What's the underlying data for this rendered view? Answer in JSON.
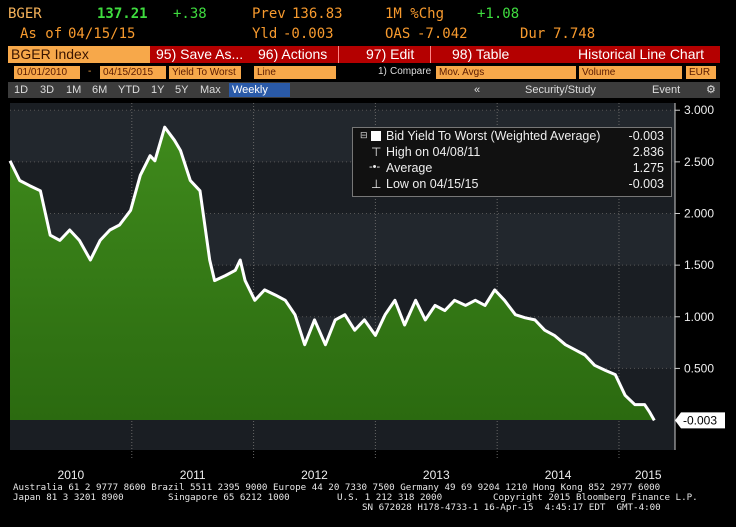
{
  "header": {
    "ticker": "BGER",
    "price": "137.21",
    "change": "+.38",
    "prev_label": "Prev",
    "prev": "136.83",
    "chg_label": "1M %Chg",
    "chg": "+1.08",
    "asof_label": "As of",
    "asof": "04/15/15",
    "yld_label": "Yld",
    "yld": "-0.003",
    "oas_label": "OAS",
    "oas": "-7.042",
    "dur_label": "Dur",
    "dur": "7.748"
  },
  "toolbar": {
    "security": "BGER Index",
    "buttons": [
      "95) Save As...",
      "96) Actions",
      "97) Edit",
      "98) Table"
    ],
    "view": "Historical Line Chart"
  },
  "fields": {
    "start": "01/01/2010",
    "separator": "-",
    "end": "04/15/2015",
    "field": "Yield To Worst",
    "style": "Line",
    "compare_num": "1)",
    "compare": "Compare",
    "studies": "Mov. Avgs",
    "lower": "Volume",
    "currency": "EUR"
  },
  "periods": {
    "buttons": [
      "1D",
      "3D",
      "1M",
      "6M",
      "YTD",
      "1Y",
      "5Y",
      "Max"
    ],
    "frequency": "Weekly",
    "back": "«",
    "study": "Security/Study",
    "event": "Event"
  },
  "chart_data": {
    "type": "area",
    "x": [
      2010.0,
      2010.08,
      2010.16,
      2010.25,
      2010.33,
      2010.41,
      2010.49,
      2010.57,
      2010.66,
      2010.74,
      2010.82,
      2010.9,
      2010.99,
      2011.07,
      2011.15,
      2011.19,
      2011.27,
      2011.35,
      2011.4,
      2011.48,
      2011.56,
      2011.64,
      2011.68,
      2011.77,
      2011.85,
      2011.89,
      2011.93,
      2012.01,
      2012.09,
      2012.18,
      2012.26,
      2012.34,
      2012.42,
      2012.5,
      2012.59,
      2012.67,
      2012.75,
      2012.83,
      2012.91,
      2013.0,
      2013.08,
      2013.16,
      2013.24,
      2013.33,
      2013.41,
      2013.49,
      2013.57,
      2013.65,
      2013.74,
      2013.82,
      2013.9,
      2013.98,
      2014.06,
      2014.15,
      2014.23,
      2014.31,
      2014.39,
      2014.47,
      2014.56,
      2014.64,
      2014.72,
      2014.8,
      2014.89,
      2014.97,
      2015.05,
      2015.13,
      2015.21,
      2015.25,
      2015.29
    ],
    "series": [
      {
        "name": "Bid Yield To Worst (Weighted Average)",
        "color": "#ffffff",
        "fill": "#3f8a1c",
        "values": [
          2.51,
          2.32,
          2.27,
          2.22,
          1.79,
          1.74,
          1.84,
          1.74,
          1.55,
          1.74,
          1.84,
          1.89,
          2.03,
          2.37,
          2.56,
          2.51,
          2.836,
          2.71,
          2.61,
          2.32,
          2.22,
          1.55,
          1.35,
          1.4,
          1.45,
          1.55,
          1.35,
          1.16,
          1.26,
          1.21,
          1.16,
          1.02,
          0.73,
          0.97,
          0.73,
          0.97,
          1.02,
          0.87,
          0.97,
          0.82,
          1.02,
          1.16,
          0.92,
          1.16,
          0.97,
          1.11,
          1.06,
          1.16,
          1.11,
          1.16,
          1.11,
          1.26,
          1.16,
          1.02,
          0.99,
          0.97,
          0.87,
          0.82,
          0.73,
          0.68,
          0.63,
          0.53,
          0.48,
          0.44,
          0.24,
          0.15,
          0.15,
          0.08,
          -0.003
        ]
      }
    ],
    "xlim": [
      2010,
      2015.46
    ],
    "ylim": [
      -0.29,
      3.07
    ],
    "xticks": [
      {
        "value": 2010.5,
        "label": "2010"
      },
      {
        "value": 2011.5,
        "label": "2011"
      },
      {
        "value": 2012.5,
        "label": "2012"
      },
      {
        "value": 2013.5,
        "label": "2013"
      },
      {
        "value": 2014.5,
        "label": "2014"
      },
      {
        "value": 2015.24,
        "label": "2015"
      }
    ],
    "xgrid": [
      2011,
      2012,
      2013,
      2014,
      2015
    ],
    "yticks": [
      {
        "value": 0.5,
        "label": "0.500"
      },
      {
        "value": 1,
        "label": "1.000"
      },
      {
        "value": 1.5,
        "label": "1.500"
      },
      {
        "value": 2,
        "label": "2.000"
      },
      {
        "value": 2.5,
        "label": "2.500"
      },
      {
        "value": 3,
        "label": "3.000"
      }
    ],
    "last_value": -0.003,
    "legend": {
      "last": -0.003,
      "high_label": "High on 04/08/11",
      "high": 2.836,
      "average_label": "Average",
      "average": 1.275,
      "low_label": "Low on 04/15/15",
      "low": -0.003
    }
  },
  "footer": {
    "line1": "Australia 61 2 9777 8600 Brazil 5511 2395 9000 Europe 44 20 7330 7500 Germany 49 69 9204 1210 Hong Kong 852 2977 6000",
    "japan": "Japan 81 3 3201 8900",
    "singapore": "Singapore 65 6212 1000",
    "us": "U.S. 1 212 318 2000",
    "copyright": "Copyright 2015 Bloomberg Finance L.P.",
    "session": "SN 672028 H178-4733-1 16-Apr-15  4:45:17 EDT  GMT-4:00"
  }
}
